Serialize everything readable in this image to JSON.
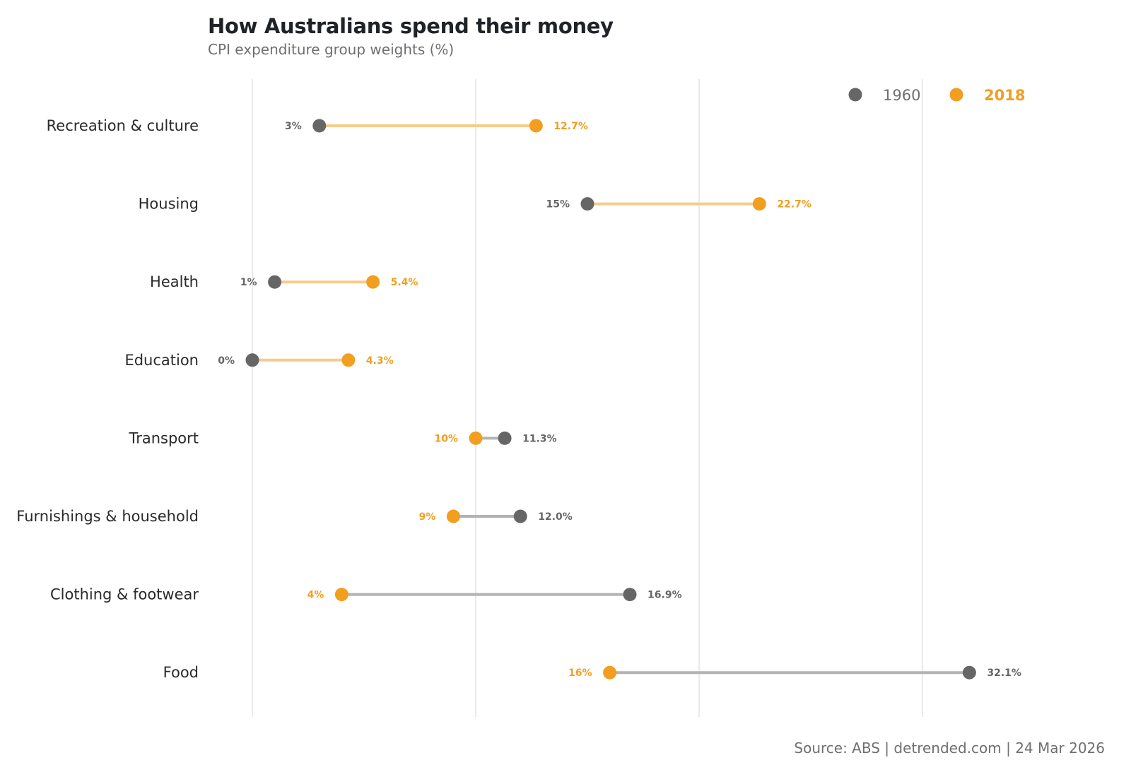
{
  "chart_data": {
    "type": "dumbbell",
    "title": "How Australians spend their money",
    "subtitle": "CPI expenditure group weights (%)",
    "source": "Source: ABS | detrended.com | 24 Mar 2026",
    "xlim": [
      0,
      35
    ],
    "grid_x": [
      0,
      10,
      20,
      30
    ],
    "grid": true,
    "legend_position": "top-right",
    "series": [
      {
        "name": "1960",
        "color": "#666666"
      },
      {
        "name": "2018",
        "color": "#f29e1f"
      }
    ],
    "line_colors": {
      "increase": "#f8cb8a",
      "decrease": "#b3b3b3"
    },
    "categories": [
      "Recreation & culture",
      "Housing",
      "Health",
      "Education",
      "Transport",
      "Furnishings & household",
      "Clothing & footwear",
      "Food"
    ],
    "values_1960": [
      3,
      15,
      1,
      0,
      11.3,
      12.0,
      16.9,
      32.1
    ],
    "values_2018": [
      12.7,
      22.7,
      5.4,
      4.3,
      10,
      9,
      4,
      16
    ],
    "labels_1960": [
      "3%",
      "15%",
      "1%",
      "0%",
      "11.3%",
      "12.0%",
      "16.9%",
      "32.1%"
    ],
    "labels_2018": [
      "12.7%",
      "22.7%",
      "5.4%",
      "4.3%",
      "10%",
      "9%",
      "4%",
      "16%"
    ]
  }
}
